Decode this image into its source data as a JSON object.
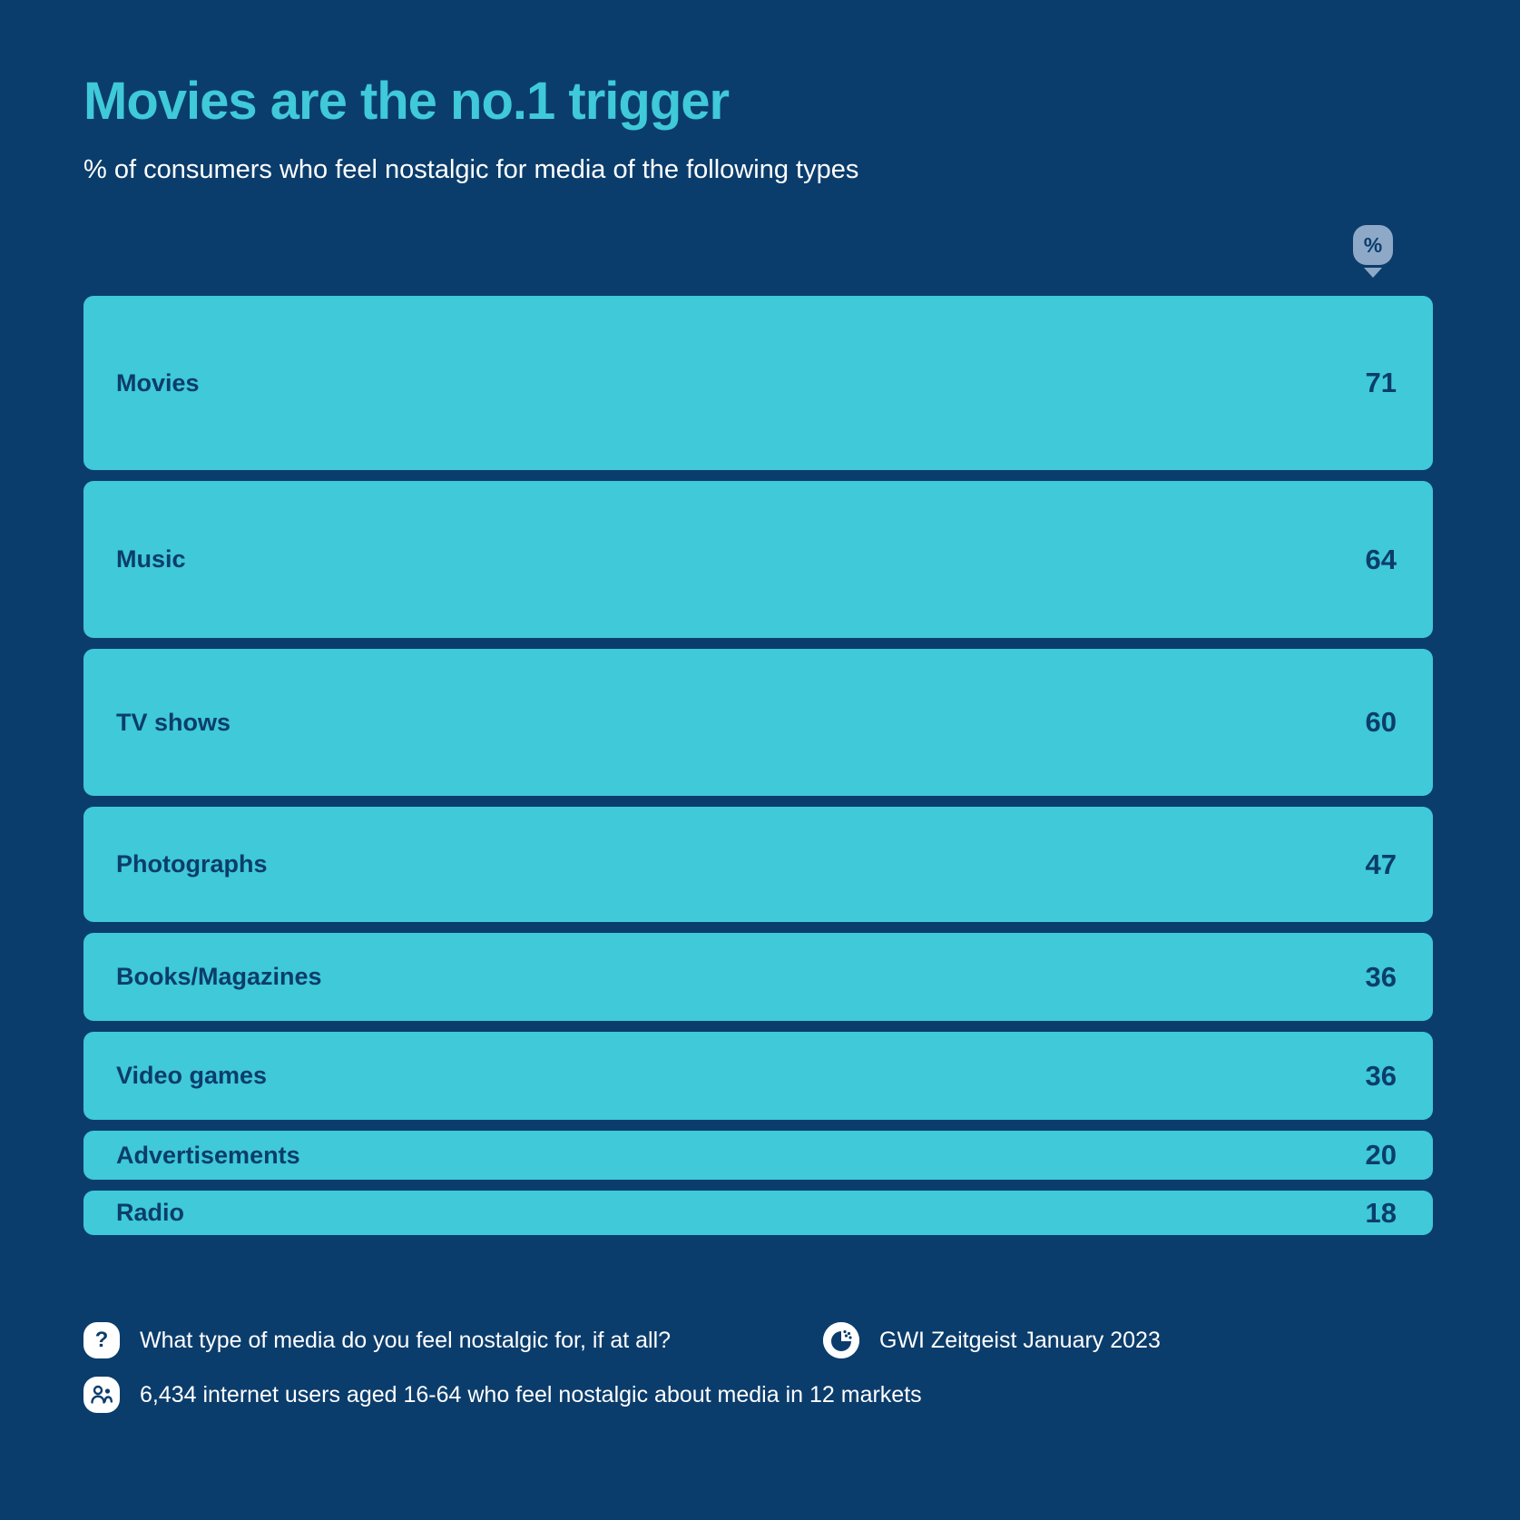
{
  "title": "Movies are the no.1 trigger",
  "subtitle": "% of consumers who feel nostalgic for media of the following types",
  "unit_badge": "%",
  "colors": {
    "background": "#0B3D6C",
    "bar": "#3FC9D9",
    "title_accent": "#3FC9D9",
    "text_on_bar": "#0B3D6C",
    "badge": "#8EA9C7",
    "text_light": "#FFFFFF"
  },
  "chart_data": {
    "type": "bar",
    "title": "Movies are the no.1 trigger",
    "subtitle": "% of consumers who feel nostalgic for media of the following types",
    "unit": "%",
    "value_encoding": "row height proportional to value; full-width turquoise bars stacked vertically",
    "categories": [
      "Movies",
      "Music",
      "TV shows",
      "Photographs",
      "Books/Magazines",
      "Video games",
      "Advertisements",
      "Radio"
    ],
    "values": [
      71,
      64,
      60,
      47,
      36,
      36,
      20,
      18
    ],
    "value_labels_position": "right-aligned inside bars",
    "legend": "none",
    "grid": "off",
    "ylim": [
      0,
      100
    ]
  },
  "footer": {
    "question_mark": "?",
    "question_label": "What type of media do you feel nostalgic for, if at all?",
    "logo_letter": "G",
    "source_label": "GWI Zeitgeist January 2023",
    "audience_label": "6,434 internet users aged 16-64 who feel nostalgic about media in 12 markets"
  }
}
